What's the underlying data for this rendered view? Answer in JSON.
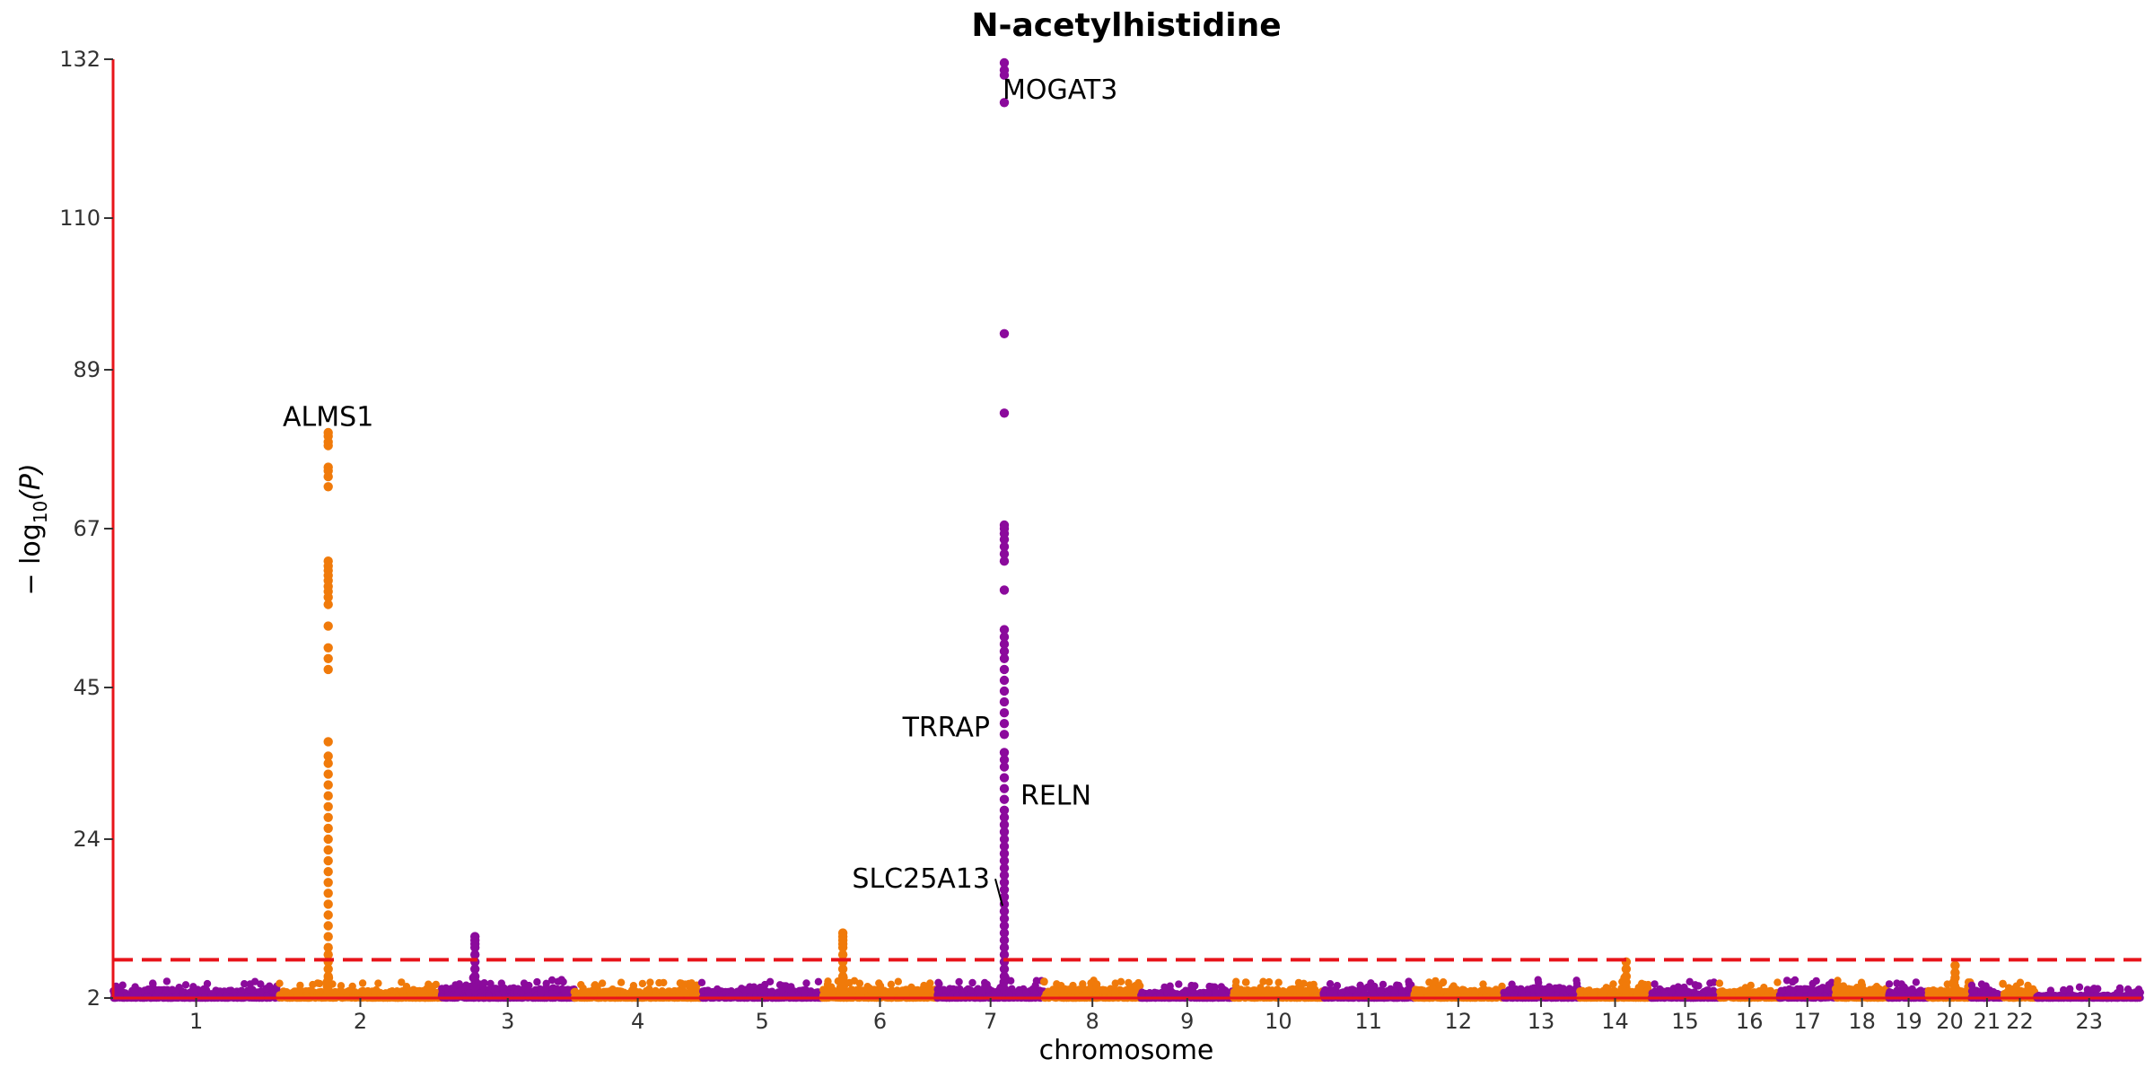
{
  "chart_data": {
    "type": "scatter",
    "title": "N-acetylhistidine",
    "xlabel": "chromosome",
    "ylabel": "−log10(P)",
    "ylabel_base": "− log",
    "ylabel_sub": "10",
    "ylabel_arg": "(P)",
    "ylim": [
      2,
      132
    ],
    "yticks": [
      "2",
      "24",
      "45",
      "67",
      "89",
      "110",
      "132"
    ],
    "threshold": 7.3,
    "colors": {
      "odd": "#8b0a9c",
      "even": "#f07a0a",
      "threshold": "#e8141a",
      "axis": "#e8141a"
    },
    "chromosomes": [
      {
        "label": "1",
        "length": 248,
        "base": 3.2
      },
      {
        "label": "2",
        "length": 242,
        "base": 3.0
      },
      {
        "label": "3",
        "length": 198,
        "base": 3.4
      },
      {
        "label": "4",
        "length": 190,
        "base": 3.0
      },
      {
        "label": "5",
        "length": 181,
        "base": 3.1
      },
      {
        "label": "6",
        "length": 171,
        "base": 3.2
      },
      {
        "label": "7",
        "length": 159,
        "base": 3.3
      },
      {
        "label": "8",
        "length": 145,
        "base": 3.3
      },
      {
        "label": "9",
        "length": 138,
        "base": 2.8
      },
      {
        "label": "10",
        "length": 134,
        "base": 3.2
      },
      {
        "label": "11",
        "length": 135,
        "base": 3.2
      },
      {
        "label": "12",
        "length": 133,
        "base": 3.2
      },
      {
        "label": "13",
        "length": 114,
        "base": 3.4
      },
      {
        "label": "14",
        "length": 107,
        "base": 3.1
      },
      {
        "label": "15",
        "length": 102,
        "base": 3.1
      },
      {
        "label": "16",
        "length": 90,
        "base": 3.0
      },
      {
        "label": "17",
        "length": 83,
        "base": 3.3
      },
      {
        "label": "18",
        "length": 80,
        "base": 3.3
      },
      {
        "label": "19",
        "length": 59,
        "base": 3.1
      },
      {
        "label": "20",
        "length": 64,
        "base": 3.1
      },
      {
        "label": "21",
        "length": 47,
        "base": 3.1
      },
      {
        "label": "22",
        "length": 51,
        "base": 3.0
      },
      {
        "label": "23",
        "length": 156,
        "base": 2.4
      }
    ],
    "peaks": [
      {
        "chr": "2",
        "pos": 73,
        "values": [
          80.3,
          79.8,
          79.0,
          78.5,
          75.5,
          75.0,
          74.2,
          72.8,
          62.5,
          61.8,
          61.2,
          60.5,
          59.8,
          59.0,
          58.3,
          57.5,
          56.5,
          53.5,
          50.5,
          49.0,
          47.5,
          37.5,
          35.5,
          34.5,
          33.0,
          31.5,
          30.0,
          28.5,
          27.0,
          25.5,
          24.0,
          22.5,
          21.0,
          19.5,
          18.0,
          16.5,
          15.0,
          13.5,
          12.0,
          10.5,
          9.0,
          8.0,
          7.0,
          6.0,
          5.0
        ]
      },
      {
        "chr": "3",
        "pos": 50,
        "values": [
          10.5,
          10.0,
          9.5,
          9.0,
          8.0,
          7.0,
          6.0,
          5.0
        ]
      },
      {
        "chr": "6",
        "pos": 30,
        "values": [
          11.0,
          10.5,
          10.0,
          9.5,
          9.0,
          8.0,
          7.0,
          6.0,
          5.0
        ]
      },
      {
        "chr": "7",
        "pos": 100,
        "values": [
          131.5,
          130.5,
          129.8,
          126.0,
          94.0,
          83.0,
          67.5,
          67.0,
          66.3,
          65.5,
          64.5,
          63.5,
          62.5,
          58.5,
          53.0,
          52.0,
          51.0,
          50.0,
          49.0,
          47.5,
          46.0,
          44.5,
          43.0,
          41.5,
          40.0,
          38.5,
          36.0,
          35.0,
          34.0,
          32.5,
          31.0,
          29.5,
          28.0,
          27.0,
          26.0,
          25.0,
          24.0,
          23.0,
          22.0,
          21.0,
          20.0,
          19.0,
          18.0,
          17.0,
          16.0,
          15.0,
          14.0,
          13.0,
          12.0,
          11.0,
          10.0,
          9.0,
          8.0,
          7.0,
          6.0,
          5.0
        ]
      },
      {
        "chr": "14",
        "pos": 70,
        "values": [
          7.0,
          6.0,
          5.0
        ]
      },
      {
        "chr": "20",
        "pos": 40,
        "values": [
          6.5,
          5.5,
          4.8
        ]
      }
    ],
    "annotations": [
      {
        "label": "MOGAT3",
        "chr": "7",
        "pos": 100,
        "y": 127.8
      },
      {
        "label": "ALMS1",
        "chr": "2",
        "pos": 73,
        "y": 82.5
      },
      {
        "label": "TRRAP",
        "chr": "7",
        "pos": 100,
        "y": 39.5
      },
      {
        "label": "RELN",
        "chr": "7",
        "pos": 100,
        "y": 30.0
      },
      {
        "label": "SLC25A13",
        "chr": "7",
        "pos": 100,
        "y": 18.5
      }
    ]
  }
}
